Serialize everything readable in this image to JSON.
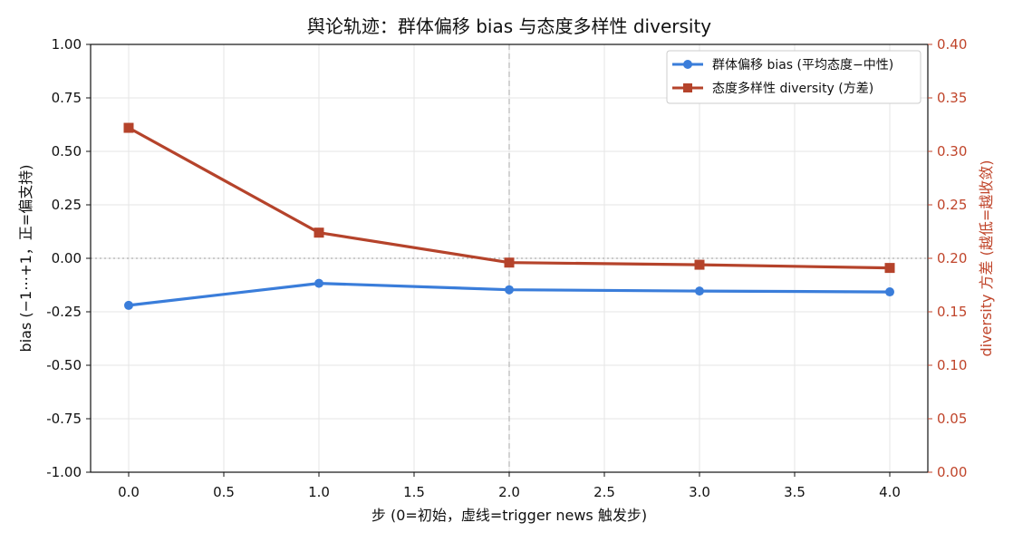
{
  "chart_data": {
    "type": "line",
    "title": "舆论轨迹：群体偏移 bias 与态度多样性 diversity",
    "xlabel": "步 (0=初始，虚线=trigger news 触发步)",
    "ylabel_left": "bias (−1⋯+1，正=偏支持)",
    "ylabel_right": "diversity 方差 (越低=越收敛)",
    "xlim": [
      -0.2,
      4.2
    ],
    "ylim_left": [
      -1.0,
      1.0
    ],
    "ylim_right": [
      0.0,
      0.4
    ],
    "x_ticks": [
      0.0,
      0.5,
      1.0,
      1.5,
      2.0,
      2.5,
      3.0,
      3.5,
      4.0
    ],
    "x_tick_labels": [
      "0.0",
      "0.5",
      "1.0",
      "1.5",
      "2.0",
      "2.5",
      "3.0",
      "3.5",
      "4.0"
    ],
    "y_left_ticks": [
      1.0,
      0.75,
      0.5,
      0.25,
      0.0,
      -0.25,
      -0.5,
      -0.75,
      -1.0
    ],
    "y_left_tick_labels": [
      "1.00",
      "0.75",
      "0.50",
      "0.25",
      "0.00",
      "-0.25",
      "-0.50",
      "-0.75",
      "-1.00"
    ],
    "y_right_ticks": [
      0.4,
      0.35,
      0.3,
      0.25,
      0.2,
      0.15,
      0.1,
      0.05,
      0.0
    ],
    "y_right_tick_labels": [
      "0.40",
      "0.35",
      "0.30",
      "0.25",
      "0.20",
      "0.15",
      "0.10",
      "0.05",
      "0.00"
    ],
    "grid": true,
    "legend_position": "top-right",
    "trigger_x": 2.0,
    "reference_y_left": 0.0,
    "series": [
      {
        "name": "群体偏移 bias (平均态度−中性)",
        "axis": "left",
        "marker": "circle",
        "color": "#3a7dda",
        "x": [
          0,
          1,
          2,
          3,
          4
        ],
        "values": [
          -0.22,
          -0.117,
          -0.147,
          -0.153,
          -0.157
        ]
      },
      {
        "name": "态度多样性 diversity (方差)",
        "axis": "right",
        "marker": "square",
        "color": "#b5432b",
        "x": [
          0,
          1,
          2,
          3,
          4
        ],
        "values": [
          0.322,
          0.224,
          0.196,
          0.194,
          0.191
        ]
      }
    ]
  }
}
